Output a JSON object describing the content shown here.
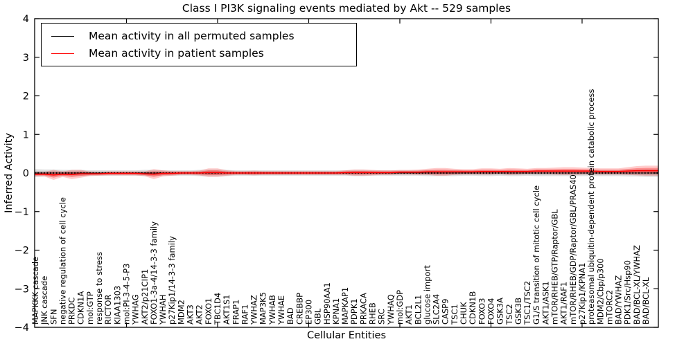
{
  "title": "Class I PI3K signaling events mediated by Akt -- 529 samples",
  "legend": {
    "items": [
      {
        "label": "Mean activity in all permuted samples",
        "color": "#000000"
      },
      {
        "label": "Mean activity in patient samples",
        "color": "#ff0000"
      }
    ]
  },
  "colors": {
    "patient_line": "#ff0000",
    "permuted_line": "#000000",
    "patient_band": "#ff0000",
    "permuted_band": "#b8b8b8",
    "axis": "#000000"
  },
  "chart_data": {
    "type": "line",
    "title": "Class I PI3K signaling events mediated by Akt -- 529 samples",
    "xlabel": "Cellular Entities",
    "ylabel": "Inferred Activity",
    "ylim": [
      -4,
      4
    ],
    "ytick_labels": [
      "−4",
      "−3",
      "−2",
      "−1",
      "0",
      "1",
      "2",
      "3",
      "4"
    ],
    "ytick_values": [
      -4,
      -3,
      -2,
      -1,
      0,
      1,
      2,
      3,
      4
    ],
    "xtick_minor_values": [
      10,
      20,
      30,
      40,
      50,
      60
    ],
    "grid": false,
    "legend_position": "upper left",
    "categories": [
      "MAPKKK cascade",
      "JNK cascade",
      "SFN",
      "negative regulation of cell cycle",
      "PRKDC",
      "CDKN1A",
      "mol:GTP",
      "response to stress",
      "RICTOR",
      "KIAA1303",
      "mol:PI-3-4-5-P3",
      "YWHAG",
      "AKT2/p21CIP1",
      "FOXO1-3a-4/14-3-3 family",
      "YWHAH",
      "p27Kip1/14-3-3 family",
      "MDM2",
      "AKT3",
      "AKT2",
      "FOXO1",
      "TBC1D4",
      "AKT1S1",
      "FRAP1",
      "RAF1",
      "YWHAZ",
      "MAP3K5",
      "YWHAB",
      "YWHAE",
      "BAD",
      "CREBBP",
      "EP300",
      "GBL",
      "HSP90AA1",
      "KPNA1",
      "MAPKAP1",
      "PDPK1",
      "PRKACA",
      "RHEB",
      "SRC",
      "YWHAQ",
      "mol:GDP",
      "AKT1",
      "BCL2L1",
      "glucose import",
      "SLC2A4",
      "CASP9",
      "TSC1",
      "CHUK",
      "CDKN1B",
      "FOXO3",
      "FOXO4",
      "GSK3A",
      "TSC2",
      "GSK3B",
      "TSC1/TSC2",
      "G1/S transition of mitotic cell cycle",
      "AKT1/ASK1",
      "mTOR/RHEB/GTP/Raptor/GBL",
      "AKT1/RAF1",
      "mTOR/RHEB/GDP/Raptor/GBL/PRAS40",
      "p27Kip1/KPNA1",
      "proteasomal ubiquitin-dependent protein catabolic process",
      "MDM2/Cbp/p300",
      "mTORC2",
      "BAD/YWHAZ",
      "PDK1/Src/Hsp90",
      "BAD/BCL-XL/YWHAZ",
      "BAD/BCL-XL"
    ],
    "series": [
      {
        "name": "Mean activity in all permuted samples",
        "color": "#000000",
        "style": "dotted",
        "values": [
          0,
          0,
          0,
          0,
          0,
          0,
          0,
          0,
          0,
          0,
          0,
          0,
          0,
          0,
          0,
          0,
          0,
          0,
          0,
          0,
          0,
          0,
          0,
          0,
          0,
          0,
          0,
          0,
          0,
          0,
          0,
          0,
          0,
          0,
          0,
          0,
          0,
          0,
          0,
          0,
          0,
          0,
          0,
          0,
          0,
          0,
          0,
          0,
          0,
          0,
          0,
          0,
          0,
          0,
          0,
          0,
          0,
          0,
          0,
          0,
          0,
          0,
          0,
          0,
          0,
          0,
          0,
          0
        ],
        "band": [
          0.1,
          0.09,
          0.09,
          0.08,
          0.08,
          0.08,
          0.07,
          0.07,
          0.07,
          0.07,
          0.07,
          0.07,
          0.08,
          0.08,
          0.07,
          0.07,
          0.07,
          0.07,
          0.08,
          0.09,
          0.09,
          0.08,
          0.07,
          0.07,
          0.07,
          0.07,
          0.07,
          0.07,
          0.07,
          0.07,
          0.07,
          0.07,
          0.07,
          0.07,
          0.07,
          0.08,
          0.08,
          0.07,
          0.07,
          0.07,
          0.07,
          0.07,
          0.07,
          0.08,
          0.08,
          0.08,
          0.08,
          0.07,
          0.07,
          0.08,
          0.08,
          0.07,
          0.08,
          0.08,
          0.07,
          0.08,
          0.08,
          0.08,
          0.08,
          0.08,
          0.08,
          0.08,
          0.08,
          0.08,
          0.08,
          0.09,
          0.09,
          0.1
        ]
      },
      {
        "name": "Mean activity in patient samples",
        "color": "#ff0000",
        "style": "solid",
        "values": [
          -0.03,
          -0.03,
          -0.05,
          -0.03,
          -0.04,
          -0.02,
          -0.02,
          -0.02,
          -0.01,
          -0.01,
          -0.01,
          -0.01,
          -0.02,
          -0.03,
          -0.01,
          -0.01,
          0.0,
          0.0,
          0.0,
          0.01,
          0.01,
          0.0,
          0.0,
          0.0,
          0.0,
          0.0,
          0.0,
          0.0,
          0.0,
          0.0,
          0.0,
          0.0,
          0.0,
          0.0,
          0.01,
          0.01,
          0.01,
          0.01,
          0.01,
          0.01,
          0.02,
          0.02,
          0.02,
          0.03,
          0.03,
          0.03,
          0.03,
          0.03,
          0.03,
          0.04,
          0.04,
          0.04,
          0.04,
          0.04,
          0.04,
          0.05,
          0.05,
          0.05,
          0.05,
          0.05,
          0.05,
          0.05,
          0.04,
          0.04,
          0.04,
          0.05,
          0.06,
          0.06
        ],
        "band": [
          0.06,
          0.06,
          0.13,
          0.07,
          0.12,
          0.1,
          0.06,
          0.05,
          0.05,
          0.05,
          0.05,
          0.05,
          0.06,
          0.13,
          0.08,
          0.06,
          0.05,
          0.05,
          0.06,
          0.11,
          0.11,
          0.07,
          0.05,
          0.05,
          0.06,
          0.05,
          0.05,
          0.05,
          0.05,
          0.05,
          0.05,
          0.05,
          0.05,
          0.05,
          0.06,
          0.08,
          0.08,
          0.07,
          0.06,
          0.06,
          0.06,
          0.06,
          0.07,
          0.08,
          0.1,
          0.1,
          0.08,
          0.07,
          0.07,
          0.08,
          0.08,
          0.07,
          0.09,
          0.08,
          0.07,
          0.08,
          0.08,
          0.09,
          0.1,
          0.1,
          0.09,
          0.08,
          0.08,
          0.08,
          0.08,
          0.1,
          0.12,
          0.13
        ]
      }
    ]
  }
}
